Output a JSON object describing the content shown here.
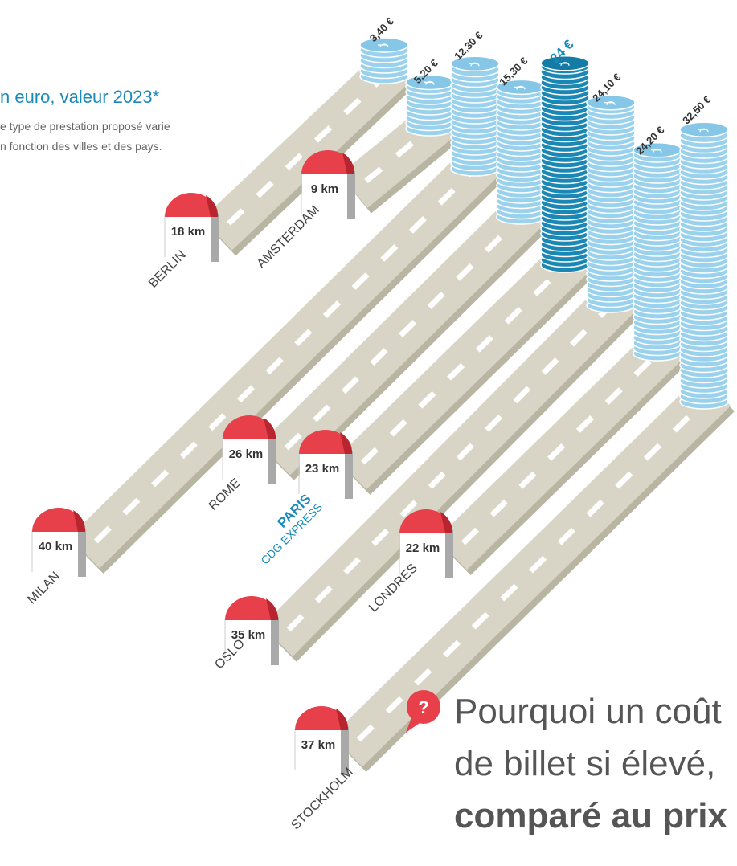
{
  "header": {
    "title": "n euro, valeur 2023*",
    "note": [
      "e type de prestation proposé varie",
      "n fonction des villes et des pays."
    ]
  },
  "routes": [
    {
      "city": "BERLIN",
      "distance": "18 km",
      "price": "3,40 €"
    },
    {
      "city": "AMSTERDAM",
      "distance": "9 km",
      "price": "5,20 €"
    },
    {
      "city": "MILAN",
      "distance": "40 km",
      "price": "12,30 €"
    },
    {
      "city": "ROME",
      "distance": "26 km",
      "price": "15,30 €"
    },
    {
      "city": "PARIS",
      "subtitle": "CDG EXPRESS",
      "distance": "23 km",
      "price": "24 €"
    },
    {
      "city": "OSLO",
      "distance": "35 km",
      "price": "24,10 €"
    },
    {
      "city": "LONDRES",
      "distance": "22 km",
      "price": "24,20 €"
    },
    {
      "city": "STOCKHOLM",
      "distance": "37 km",
      "price": "32,50 €"
    }
  ],
  "question": {
    "icon": "?",
    "lines": [
      "Pourquoi un coût",
      "de billet si élevé,",
      "comparé au prix"
    ]
  }
}
